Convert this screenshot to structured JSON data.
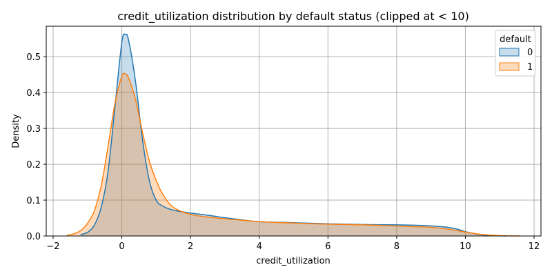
{
  "chart_data": {
    "type": "area",
    "title": "credit_utilization distribution by default status (clipped at < 10)",
    "xlabel": "credit_utilization",
    "ylabel": "Density",
    "xlim": [
      -2.2,
      12.2
    ],
    "ylim": [
      0,
      0.585
    ],
    "xticks": [
      -2,
      0,
      2,
      4,
      6,
      8,
      10,
      12
    ],
    "yticks": [
      0.0,
      0.1,
      0.2,
      0.3,
      0.4,
      0.5
    ],
    "ytick_labels": [
      "0.0",
      "0.1",
      "0.2",
      "0.3",
      "0.4",
      "0.5"
    ],
    "grid": true,
    "legend": {
      "title": "default",
      "placement": "top-right"
    },
    "series": [
      {
        "name": "0",
        "color": "#1f77b4",
        "fill": "rgba(31,119,180,0.25)",
        "x": [
          -1.2,
          -1.0,
          -0.8,
          -0.6,
          -0.4,
          -0.2,
          0.0,
          0.1,
          0.2,
          0.4,
          0.6,
          0.8,
          1.0,
          1.2,
          1.5,
          2.0,
          2.5,
          3.0,
          3.5,
          4.0,
          5.0,
          6.0,
          7.0,
          8.0,
          8.5,
          9.0,
          9.5,
          9.8,
          10.0,
          10.3,
          10.6,
          11.0,
          11.2
        ],
        "y": [
          0.004,
          0.01,
          0.03,
          0.08,
          0.18,
          0.36,
          0.54,
          0.562,
          0.545,
          0.43,
          0.27,
          0.155,
          0.1,
          0.083,
          0.072,
          0.064,
          0.058,
          0.051,
          0.045,
          0.04,
          0.037,
          0.034,
          0.032,
          0.031,
          0.03,
          0.028,
          0.024,
          0.018,
          0.012,
          0.006,
          0.002,
          0.0005,
          0.0
        ]
      },
      {
        "name": "1",
        "color": "#ff7f0e",
        "fill": "rgba(255,127,14,0.28)",
        "x": [
          -1.6,
          -1.4,
          -1.2,
          -1.0,
          -0.8,
          -0.6,
          -0.4,
          -0.2,
          0.0,
          0.1,
          0.2,
          0.4,
          0.6,
          0.8,
          1.0,
          1.2,
          1.5,
          2.0,
          2.5,
          3.0,
          3.5,
          4.0,
          5.0,
          6.0,
          7.0,
          8.0,
          8.5,
          9.0,
          9.5,
          10.0,
          10.5,
          11.0,
          11.6
        ],
        "y": [
          0.002,
          0.006,
          0.015,
          0.035,
          0.07,
          0.14,
          0.25,
          0.37,
          0.445,
          0.452,
          0.44,
          0.38,
          0.29,
          0.21,
          0.155,
          0.115,
          0.08,
          0.06,
          0.053,
          0.048,
          0.044,
          0.04,
          0.036,
          0.033,
          0.031,
          0.028,
          0.026,
          0.024,
          0.019,
          0.011,
          0.004,
          0.001,
          0.0
        ]
      }
    ]
  }
}
